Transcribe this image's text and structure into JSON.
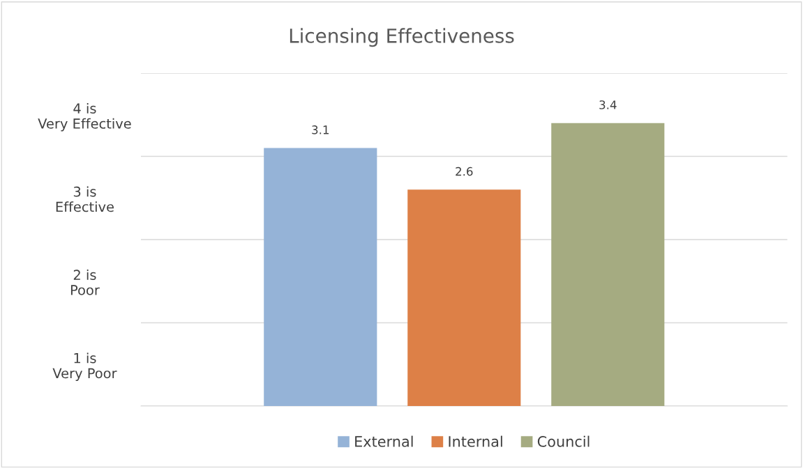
{
  "chart_data": {
    "type": "bar",
    "title": "Licensing Effectiveness",
    "categories": [
      null
    ],
    "series": [
      {
        "name": "External",
        "color": "#95b3d7",
        "values": [
          3.1
        ]
      },
      {
        "name": "Internal",
        "color": "#dd8047",
        "values": [
          2.6
        ]
      },
      {
        "name": "Council",
        "color": "#a5ab81",
        "values": [
          3.4
        ]
      }
    ],
    "ylim": [
      0,
      4
    ],
    "yticks": [
      {
        "value": 0,
        "label": null
      },
      {
        "value": 0.5,
        "label": "1 is\nVery Poor"
      },
      {
        "value": 1,
        "label": null
      },
      {
        "value": 1.5,
        "label": "2 is\nPoor"
      },
      {
        "value": 2,
        "label": null
      },
      {
        "value": 2.5,
        "label": "3 is\nEffective"
      },
      {
        "value": 3,
        "label": null
      },
      {
        "value": 3.5,
        "label": "4 is\nVery Effective"
      },
      {
        "value": 4,
        "label": null
      }
    ],
    "grid": "y",
    "legend": "bottom",
    "data_labels": true
  }
}
